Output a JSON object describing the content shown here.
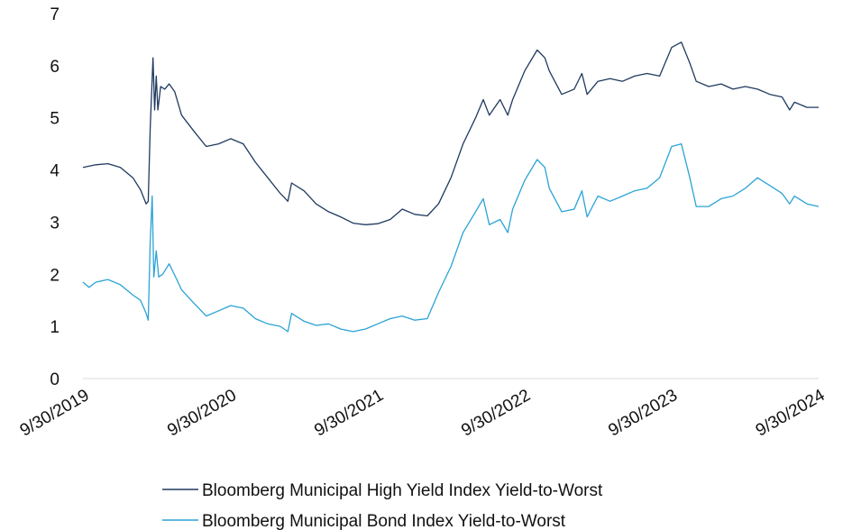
{
  "chart_data": {
    "type": "line",
    "title": "",
    "xlabel": "",
    "ylabel": "",
    "ylim": [
      0,
      7
    ],
    "yticks": [
      "0",
      "1",
      "2",
      "3",
      "4",
      "5",
      "6",
      "7"
    ],
    "xlim": [
      "9/30/2019",
      "9/30/2024"
    ],
    "xticks": [
      "9/30/2019",
      "9/30/2020",
      "9/30/2021",
      "9/30/2022",
      "9/30/2023",
      "9/30/2024"
    ],
    "grid": false,
    "legend": "bottom",
    "series": [
      {
        "name": "Bloomberg Municipal High Yield Index Yield-to-Worst",
        "color": "#1f3a5f",
        "points": [
          [
            "9/30/2019",
            4.05
          ],
          [
            "11/1/2019",
            4.1
          ],
          [
            "12/1/2019",
            4.12
          ],
          [
            "1/1/2020",
            4.05
          ],
          [
            "2/1/2020",
            3.85
          ],
          [
            "2/20/2020",
            3.62
          ],
          [
            "3/5/2020",
            3.35
          ],
          [
            "3/10/2020",
            3.4
          ],
          [
            "3/15/2020",
            4.8
          ],
          [
            "3/22/2020",
            6.15
          ],
          [
            "3/26/2020",
            5.15
          ],
          [
            "3/30/2020",
            5.8
          ],
          [
            "4/3/2020",
            5.15
          ],
          [
            "4/10/2020",
            5.6
          ],
          [
            "4/20/2020",
            5.55
          ],
          [
            "5/1/2020",
            5.65
          ],
          [
            "5/15/2020",
            5.5
          ],
          [
            "6/1/2020",
            5.05
          ],
          [
            "7/1/2020",
            4.75
          ],
          [
            "8/1/2020",
            4.45
          ],
          [
            "9/1/2020",
            4.5
          ],
          [
            "10/1/2020",
            4.6
          ],
          [
            "11/1/2020",
            4.5
          ],
          [
            "12/1/2020",
            4.15
          ],
          [
            "1/1/2021",
            3.85
          ],
          [
            "2/1/2021",
            3.55
          ],
          [
            "2/20/2021",
            3.4
          ],
          [
            "3/1/2021",
            3.75
          ],
          [
            "4/1/2021",
            3.6
          ],
          [
            "5/1/2021",
            3.35
          ],
          [
            "6/1/2021",
            3.2
          ],
          [
            "7/1/2021",
            3.1
          ],
          [
            "8/1/2021",
            2.98
          ],
          [
            "9/1/2021",
            2.95
          ],
          [
            "10/1/2021",
            2.97
          ],
          [
            "11/1/2021",
            3.05
          ],
          [
            "12/1/2021",
            3.25
          ],
          [
            "1/1/2022",
            3.15
          ],
          [
            "2/1/2022",
            3.12
          ],
          [
            "3/1/2022",
            3.35
          ],
          [
            "4/1/2022",
            3.85
          ],
          [
            "5/1/2022",
            4.5
          ],
          [
            "6/1/2022",
            5.0
          ],
          [
            "6/20/2022",
            5.35
          ],
          [
            "7/5/2022",
            5.05
          ],
          [
            "8/1/2022",
            5.35
          ],
          [
            "8/20/2022",
            5.05
          ],
          [
            "9/1/2022",
            5.35
          ],
          [
            "10/1/2022",
            5.9
          ],
          [
            "11/1/2022",
            6.3
          ],
          [
            "11/20/2022",
            6.15
          ],
          [
            "12/1/2022",
            5.9
          ],
          [
            "1/1/2023",
            5.45
          ],
          [
            "2/1/2023",
            5.55
          ],
          [
            "2/20/2023",
            5.85
          ],
          [
            "3/5/2023",
            5.45
          ],
          [
            "4/1/2023",
            5.7
          ],
          [
            "5/1/2023",
            5.75
          ],
          [
            "6/1/2023",
            5.7
          ],
          [
            "7/1/2023",
            5.8
          ],
          [
            "8/1/2023",
            5.85
          ],
          [
            "9/1/2023",
            5.8
          ],
          [
            "10/1/2023",
            6.35
          ],
          [
            "10/25/2023",
            6.45
          ],
          [
            "11/15/2023",
            6.05
          ],
          [
            "12/1/2023",
            5.7
          ],
          [
            "1/1/2024",
            5.6
          ],
          [
            "2/1/2024",
            5.65
          ],
          [
            "3/1/2024",
            5.55
          ],
          [
            "4/1/2024",
            5.6
          ],
          [
            "5/1/2024",
            5.55
          ],
          [
            "6/1/2024",
            5.45
          ],
          [
            "7/1/2024",
            5.4
          ],
          [
            "7/20/2024",
            5.15
          ],
          [
            "8/1/2024",
            5.3
          ],
          [
            "9/1/2024",
            5.2
          ],
          [
            "9/30/2024",
            5.2
          ]
        ]
      },
      {
        "name": "Bloomberg Municipal Bond Index Yield-to-Worst",
        "color": "#2aa3d5",
        "points": [
          [
            "9/30/2019",
            1.85
          ],
          [
            "10/15/2019",
            1.75
          ],
          [
            "11/1/2019",
            1.85
          ],
          [
            "12/1/2019",
            1.9
          ],
          [
            "1/1/2020",
            1.8
          ],
          [
            "2/1/2020",
            1.6
          ],
          [
            "2/20/2020",
            1.5
          ],
          [
            "3/5/2020",
            1.25
          ],
          [
            "3/10/2020",
            1.12
          ],
          [
            "3/15/2020",
            2.6
          ],
          [
            "3/20/2020",
            3.5
          ],
          [
            "3/24/2020",
            1.95
          ],
          [
            "3/30/2020",
            2.45
          ],
          [
            "4/5/2020",
            1.95
          ],
          [
            "4/15/2020",
            2.0
          ],
          [
            "5/1/2020",
            2.2
          ],
          [
            "5/20/2020",
            1.9
          ],
          [
            "6/1/2020",
            1.7
          ],
          [
            "7/1/2020",
            1.45
          ],
          [
            "8/1/2020",
            1.2
          ],
          [
            "9/1/2020",
            1.3
          ],
          [
            "10/1/2020",
            1.4
          ],
          [
            "11/1/2020",
            1.35
          ],
          [
            "12/1/2020",
            1.15
          ],
          [
            "1/1/2021",
            1.05
          ],
          [
            "2/1/2021",
            1.0
          ],
          [
            "2/20/2021",
            0.9
          ],
          [
            "3/1/2021",
            1.25
          ],
          [
            "4/1/2021",
            1.1
          ],
          [
            "5/1/2021",
            1.02
          ],
          [
            "6/1/2021",
            1.05
          ],
          [
            "7/1/2021",
            0.95
          ],
          [
            "8/1/2021",
            0.9
          ],
          [
            "9/1/2021",
            0.95
          ],
          [
            "10/1/2021",
            1.05
          ],
          [
            "11/1/2021",
            1.15
          ],
          [
            "12/1/2021",
            1.2
          ],
          [
            "1/1/2022",
            1.12
          ],
          [
            "2/1/2022",
            1.15
          ],
          [
            "3/1/2022",
            1.65
          ],
          [
            "4/1/2022",
            2.15
          ],
          [
            "5/1/2022",
            2.8
          ],
          [
            "6/1/2022",
            3.2
          ],
          [
            "6/20/2022",
            3.45
          ],
          [
            "7/5/2022",
            2.95
          ],
          [
            "8/1/2022",
            3.05
          ],
          [
            "8/20/2022",
            2.8
          ],
          [
            "9/1/2022",
            3.25
          ],
          [
            "10/1/2022",
            3.8
          ],
          [
            "11/1/2022",
            4.2
          ],
          [
            "11/20/2022",
            4.05
          ],
          [
            "12/1/2022",
            3.65
          ],
          [
            "1/1/2023",
            3.2
          ],
          [
            "2/1/2023",
            3.25
          ],
          [
            "2/20/2023",
            3.6
          ],
          [
            "3/5/2023",
            3.1
          ],
          [
            "4/1/2023",
            3.5
          ],
          [
            "5/1/2023",
            3.4
          ],
          [
            "6/1/2023",
            3.5
          ],
          [
            "7/1/2023",
            3.6
          ],
          [
            "8/1/2023",
            3.65
          ],
          [
            "9/1/2023",
            3.85
          ],
          [
            "10/1/2023",
            4.45
          ],
          [
            "10/25/2023",
            4.5
          ],
          [
            "11/15/2023",
            3.85
          ],
          [
            "12/1/2023",
            3.3
          ],
          [
            "1/1/2024",
            3.3
          ],
          [
            "2/1/2024",
            3.45
          ],
          [
            "3/1/2024",
            3.5
          ],
          [
            "4/1/2024",
            3.65
          ],
          [
            "5/1/2024",
            3.85
          ],
          [
            "6/1/2024",
            3.7
          ],
          [
            "7/1/2024",
            3.55
          ],
          [
            "7/20/2024",
            3.35
          ],
          [
            "8/1/2024",
            3.5
          ],
          [
            "9/1/2024",
            3.35
          ],
          [
            "9/30/2024",
            3.3
          ]
        ]
      }
    ]
  }
}
